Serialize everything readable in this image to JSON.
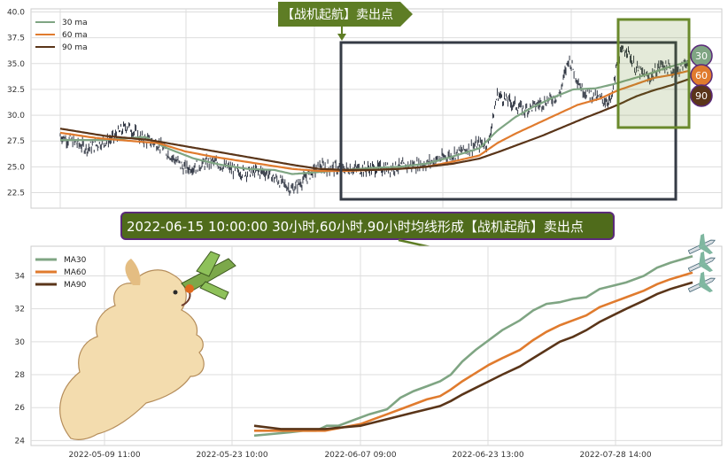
{
  "colors": {
    "ma30": "#7fa583",
    "ma60": "#e07b2e",
    "ma90": "#5a3519",
    "candle": "#2f3542",
    "grid": "#dddddd",
    "callout_bg": "#5e7d25",
    "box_dark": "#353b45",
    "box_green": "#6a8a2c",
    "banner_bg": "#4f6b1b",
    "banner_border": "#5b2a7a"
  },
  "top_callout": {
    "text": "【战机起航】卖出点"
  },
  "banner": {
    "text": "2022-06-15 10:00:00 30小时,60小时,90小时均线形成【战机起航】卖出点"
  },
  "badges": [
    {
      "label": "30",
      "color": "#7fa583"
    },
    {
      "label": "60",
      "color": "#e07b2e"
    },
    {
      "label": "90",
      "color": "#5a3519"
    }
  ],
  "chart_data": [
    {
      "type": "line",
      "legend": [
        "30 ma",
        "60 ma",
        "90 ma"
      ],
      "legend_position": "top-left",
      "grid": true,
      "ylim": [
        21.0,
        40.3
      ],
      "yticks": [
        "22.5",
        "25.0",
        "27.5",
        "30.0",
        "32.5",
        "35.0",
        "37.5",
        "40.0"
      ],
      "price_anchors": [
        [
          0,
          28.0
        ],
        [
          30,
          26.8
        ],
        [
          60,
          27.8
        ],
        [
          75,
          29.0
        ],
        [
          90,
          27.8
        ],
        [
          110,
          27.2
        ],
        [
          140,
          24.8
        ],
        [
          170,
          25.5
        ],
        [
          200,
          24.5
        ],
        [
          230,
          24.5
        ],
        [
          260,
          22.8
        ],
        [
          290,
          25.0
        ],
        [
          320,
          24.8
        ],
        [
          350,
          24.8
        ],
        [
          380,
          25.0
        ],
        [
          410,
          25.3
        ],
        [
          440,
          26.2
        ],
        [
          470,
          27.2
        ],
        [
          480,
          27.3
        ],
        [
          490,
          32.0
        ],
        [
          500,
          31.5
        ],
        [
          520,
          30.5
        ],
        [
          540,
          31.2
        ],
        [
          560,
          32.0
        ],
        [
          570,
          35.5
        ],
        [
          585,
          32.5
        ],
        [
          605,
          31.5
        ],
        [
          618,
          31.4
        ],
        [
          625,
          35.5
        ],
        [
          635,
          36.5
        ],
        [
          645,
          34.5
        ],
        [
          660,
          33.5
        ],
        [
          675,
          35.0
        ],
        [
          690,
          34.0
        ],
        [
          705,
          35.5
        ]
      ],
      "series": [
        {
          "name": "30 ma",
          "anchors": [
            [
              0,
              27.6
            ],
            [
              50,
              27.6
            ],
            [
              95,
              27.9
            ],
            [
              120,
              26.8
            ],
            [
              150,
              25.8
            ],
            [
              180,
              25.2
            ],
            [
              210,
              24.8
            ],
            [
              240,
              24.7
            ],
            [
              260,
              24.3
            ],
            [
              290,
              24.5
            ],
            [
              320,
              24.7
            ],
            [
              350,
              24.9
            ],
            [
              380,
              25.0
            ],
            [
              410,
              25.3
            ],
            [
              440,
              26.0
            ],
            [
              470,
              26.8
            ],
            [
              490,
              28.5
            ],
            [
              510,
              29.8
            ],
            [
              530,
              30.8
            ],
            [
              555,
              31.8
            ],
            [
              575,
              32.5
            ],
            [
              600,
              32.6
            ],
            [
              620,
              33.0
            ],
            [
              640,
              33.5
            ],
            [
              660,
              34.0
            ],
            [
              680,
              34.6
            ],
            [
              705,
              35.2
            ]
          ]
        },
        {
          "name": "60 ma",
          "anchors": [
            [
              0,
              28.3
            ],
            [
              40,
              27.8
            ],
            [
              80,
              27.5
            ],
            [
              110,
              27.3
            ],
            [
              140,
              26.5
            ],
            [
              170,
              26.0
            ],
            [
              200,
              25.6
            ],
            [
              230,
              25.2
            ],
            [
              260,
              24.8
            ],
            [
              290,
              24.6
            ],
            [
              320,
              24.6
            ],
            [
              350,
              24.7
            ],
            [
              380,
              24.8
            ],
            [
              410,
              25.0
            ],
            [
              440,
              25.5
            ],
            [
              470,
              26.1
            ],
            [
              490,
              27.3
            ],
            [
              510,
              28.2
            ],
            [
              530,
              29.0
            ],
            [
              555,
              30.0
            ],
            [
              580,
              31.0
            ],
            [
              605,
              31.6
            ],
            [
              625,
              32.4
            ],
            [
              645,
              33.0
            ],
            [
              665,
              33.6
            ],
            [
              685,
              33.9
            ],
            [
              705,
              34.3
            ]
          ]
        },
        {
          "name": "90 ma",
          "anchors": [
            [
              0,
              28.7
            ],
            [
              50,
              28.0
            ],
            [
              100,
              27.6
            ],
            [
              140,
              27.0
            ],
            [
              180,
              26.4
            ],
            [
              220,
              25.8
            ],
            [
              260,
              25.2
            ],
            [
              290,
              24.8
            ],
            [
              320,
              24.7
            ],
            [
              350,
              24.7
            ],
            [
              380,
              24.8
            ],
            [
              410,
              25.0
            ],
            [
              440,
              25.3
            ],
            [
              470,
              25.8
            ],
            [
              490,
              26.4
            ],
            [
              515,
              27.2
            ],
            [
              540,
              28.0
            ],
            [
              565,
              28.9
            ],
            [
              590,
              29.8
            ],
            [
              605,
              30.3
            ],
            [
              625,
              31.0
            ],
            [
              645,
              31.8
            ],
            [
              665,
              32.4
            ],
            [
              685,
              32.9
            ],
            [
              705,
              33.5
            ]
          ]
        }
      ]
    },
    {
      "type": "line",
      "legend": [
        "MA30",
        "MA60",
        "MA90"
      ],
      "legend_position": "top-left",
      "grid": true,
      "ylim": [
        23.7,
        35.8
      ],
      "yticks": [
        "24",
        "26",
        "28",
        "30",
        "32",
        "34"
      ],
      "xticks": [
        "2022-05-09 11:00",
        "2022-05-23 10:00",
        "2022-06-07 09:00",
        "2022-06-23 13:00",
        "2022-07-28 14:00"
      ],
      "series": [
        {
          "name": "MA30",
          "points": [
            [
              0,
              24.3
            ],
            [
              20,
              24.4
            ],
            [
              40,
              24.5
            ],
            [
              55,
              24.6
            ],
            [
              70,
              24.6
            ],
            [
              82,
              24.9
            ],
            [
              95,
              24.9
            ],
            [
              110,
              25.2
            ],
            [
              130,
              25.6
            ],
            [
              150,
              25.9
            ],
            [
              165,
              26.6
            ],
            [
              180,
              27.0
            ],
            [
              195,
              27.3
            ],
            [
              210,
              27.6
            ],
            [
              222,
              28.0
            ],
            [
              235,
              28.8
            ],
            [
              250,
              29.5
            ],
            [
              265,
              30.1
            ],
            [
              280,
              30.7
            ],
            [
              300,
              31.3
            ],
            [
              315,
              31.9
            ],
            [
              330,
              32.3
            ],
            [
              345,
              32.4
            ],
            [
              360,
              32.6
            ],
            [
              375,
              32.7
            ],
            [
              390,
              33.2
            ],
            [
              405,
              33.4
            ],
            [
              420,
              33.6
            ],
            [
              440,
              34.0
            ],
            [
              455,
              34.5
            ],
            [
              470,
              34.8
            ],
            [
              495,
              35.2
            ]
          ]
        },
        {
          "name": "MA60",
          "points": [
            [
              0,
              24.6
            ],
            [
              30,
              24.6
            ],
            [
              60,
              24.6
            ],
            [
              80,
              24.6
            ],
            [
              100,
              24.8
            ],
            [
              120,
              25.0
            ],
            [
              135,
              25.3
            ],
            [
              150,
              25.6
            ],
            [
              165,
              25.9
            ],
            [
              180,
              26.2
            ],
            [
              195,
              26.5
            ],
            [
              210,
              26.7
            ],
            [
              222,
              27.1
            ],
            [
              235,
              27.6
            ],
            [
              250,
              28.1
            ],
            [
              265,
              28.6
            ],
            [
              280,
              29.0
            ],
            [
              300,
              29.5
            ],
            [
              315,
              30.1
            ],
            [
              330,
              30.6
            ],
            [
              345,
              31.0
            ],
            [
              360,
              31.3
            ],
            [
              375,
              31.6
            ],
            [
              390,
              32.1
            ],
            [
              405,
              32.4
            ],
            [
              420,
              32.7
            ],
            [
              440,
              33.1
            ],
            [
              455,
              33.5
            ],
            [
              470,
              33.8
            ],
            [
              495,
              34.2
            ]
          ]
        },
        {
          "name": "MA90",
          "points": [
            [
              0,
              24.9
            ],
            [
              30,
              24.7
            ],
            [
              60,
              24.7
            ],
            [
              80,
              24.7
            ],
            [
              100,
              24.8
            ],
            [
              120,
              24.9
            ],
            [
              135,
              25.1
            ],
            [
              150,
              25.3
            ],
            [
              165,
              25.5
            ],
            [
              180,
              25.7
            ],
            [
              195,
              25.9
            ],
            [
              210,
              26.1
            ],
            [
              222,
              26.4
            ],
            [
              235,
              26.8
            ],
            [
              250,
              27.2
            ],
            [
              265,
              27.6
            ],
            [
              280,
              28.0
            ],
            [
              300,
              28.5
            ],
            [
              315,
              29.0
            ],
            [
              330,
              29.5
            ],
            [
              345,
              30.0
            ],
            [
              360,
              30.3
            ],
            [
              375,
              30.7
            ],
            [
              390,
              31.2
            ],
            [
              405,
              31.6
            ],
            [
              420,
              32.0
            ],
            [
              440,
              32.5
            ],
            [
              455,
              32.9
            ],
            [
              470,
              33.2
            ],
            [
              495,
              33.6
            ]
          ]
        }
      ]
    }
  ]
}
